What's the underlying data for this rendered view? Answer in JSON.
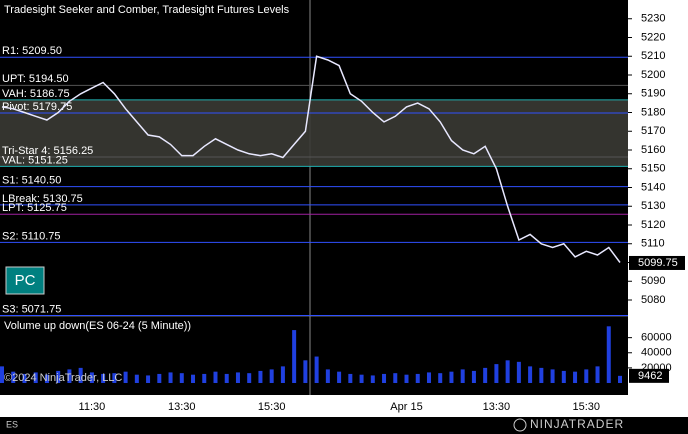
{
  "chart_data": [
    {
      "type": "line",
      "title": "Tradesight Seeker and Comber, Tradesight Futures Levels",
      "categories": [
        null,
        null,
        null,
        null,
        null,
        null,
        null,
        null,
        "11:30",
        null,
        null,
        null,
        null,
        null,
        null,
        null,
        "13:30",
        null,
        null,
        null,
        null,
        null,
        null,
        null,
        "15:30",
        null,
        null,
        null,
        null,
        null,
        null,
        null,
        null,
        null,
        null,
        null,
        "Apr 15",
        null,
        null,
        null,
        null,
        null,
        null,
        null,
        "13:30",
        null,
        null,
        null,
        null,
        null,
        null,
        null,
        "15:30",
        null,
        null,
        null
      ],
      "series": [
        {
          "name": "ES 06-24",
          "color": "#e8e8ff",
          "values": [
            5183,
            5182,
            5180,
            5178,
            5176,
            5180,
            5186,
            5190,
            5193,
            5196,
            5190,
            5182,
            5175,
            5168,
            5167,
            5163,
            5157,
            5157,
            5162,
            5166,
            5163,
            5160,
            5158,
            5157,
            5158,
            5156,
            5163,
            5170,
            5210,
            5208,
            5205,
            5190,
            5186,
            5180,
            5175,
            5178,
            5183,
            5185,
            5182,
            5175,
            5165,
            5160,
            5158,
            5162,
            5150,
            5130,
            5112,
            5115,
            5110,
            5108,
            5110,
            5103,
            5106,
            5104,
            5108,
            5100
          ]
        }
      ],
      "levels": [
        {
          "label": "R1: 5209.50",
          "value": 5209.5,
          "color": "#3050ff"
        },
        {
          "label": "UPT: 5194.50",
          "value": 5194.5,
          "color": "#555555"
        },
        {
          "label": "VAH: 5186.75",
          "value": 5186.75,
          "color": "#20b0b0"
        },
        {
          "label": "Pivot: 5179.75",
          "value": 5179.75,
          "color": "#3050ff"
        },
        {
          "label": "Tri-Star 4: 5156.25",
          "value": 5156.25,
          "color": "#555555"
        },
        {
          "label": "VAL: 5151.25",
          "value": 5151.25,
          "color": "#20b0b0"
        },
        {
          "label": "S1: 5140.50",
          "value": 5140.5,
          "color": "#3050ff"
        },
        {
          "label": "LBreak: 5130.75",
          "value": 5130.75,
          "color": "#3050ff"
        },
        {
          "label": "LPT: 5125.75",
          "value": 5125.75,
          "color": "#a020a0"
        },
        {
          "label": "S2: 5110.75",
          "value": 5110.75,
          "color": "#3050ff"
        },
        {
          "label": "S3: 5071.75",
          "value": 5071.75,
          "color": "#3050ff"
        }
      ],
      "last_price": {
        "value": 5099.75,
        "label": "5099.75"
      },
      "ylim": [
        5072,
        5240
      ],
      "yticks": [
        5080,
        5090,
        5100,
        5110,
        5120,
        5130,
        5140,
        5150,
        5160,
        5170,
        5180,
        5190,
        5200,
        5210,
        5220,
        5230
      ],
      "button": "PC",
      "instrument": "ES",
      "brand": "NINJATRADER"
    },
    {
      "type": "bar",
      "title": "Volume up down(ES 06-24 (5 Minute))",
      "color": "#2040e0",
      "values": [
        22000,
        15000,
        12000,
        14000,
        11000,
        16000,
        18000,
        20000,
        14000,
        12000,
        13000,
        15000,
        11000,
        10000,
        12000,
        14000,
        13000,
        11000,
        12000,
        15000,
        12000,
        14000,
        13000,
        16000,
        18000,
        22000,
        70000,
        30000,
        35000,
        18000,
        15000,
        12000,
        11000,
        10000,
        12000,
        13000,
        11000,
        12000,
        14000,
        13000,
        15000,
        18000,
        16000,
        20000,
        25000,
        30000,
        28000,
        22000,
        20000,
        18000,
        16000,
        15000,
        18000,
        22000,
        75000,
        9462
      ],
      "last_value": 9462,
      "ylim": [
        0,
        86000
      ],
      "yticks": [
        20000,
        40000,
        60000
      ],
      "copyright": "©2024 NinjaTrader, LLC"
    }
  ]
}
